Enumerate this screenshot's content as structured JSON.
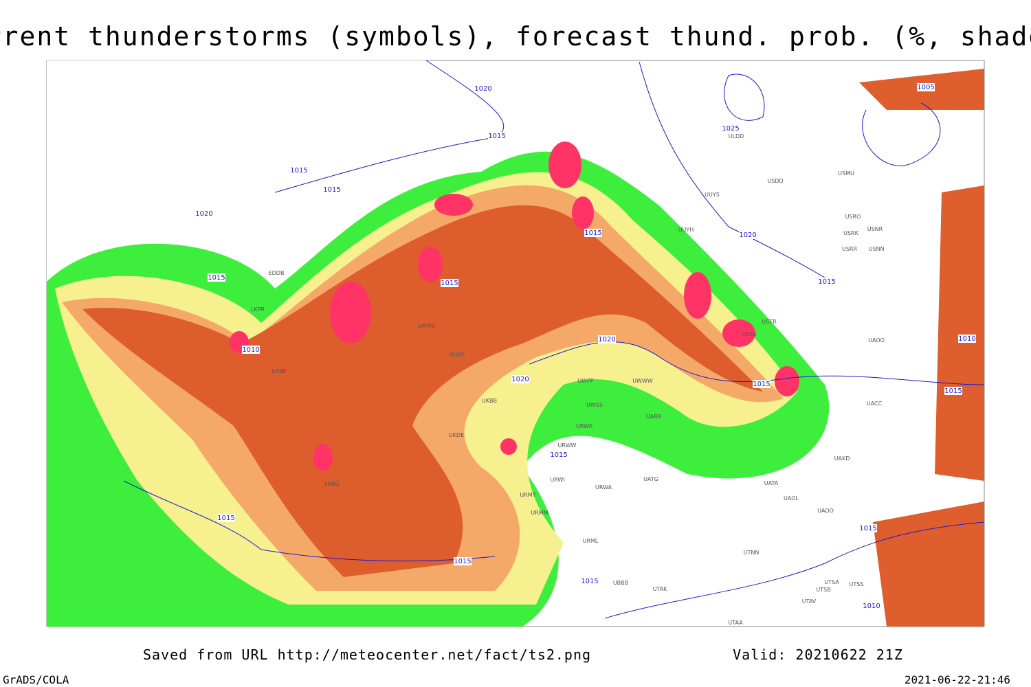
{
  "header": {
    "title": "Current thunderstorms (symbols), forecast thund. prob. (%, shaded)"
  },
  "footer": {
    "source": "Saved from URL http://meteocenter.net/fact/ts2.png",
    "valid": "Valid: 20210622 21Z",
    "software": "GrADS/COLA",
    "timestamp": "2021-06-22-21:46"
  },
  "isobar_labels": [
    "1020",
    "1015",
    "1015",
    "1015",
    "1020",
    "1015",
    "1010",
    "1015",
    "1015",
    "1025",
    "1020",
    "1015",
    "1010",
    "1015",
    "1020",
    "1020",
    "1015",
    "1015",
    "1015",
    "1015",
    "1015",
    "1015",
    "1010",
    "1005"
  ],
  "stations": [
    "ULDD",
    "USDD",
    "USMU",
    "UUYS",
    "USRO",
    "USRK",
    "USNR",
    "USRR",
    "USNN",
    "UUYH",
    "USTR",
    "USSS",
    "UACC",
    "UAOO",
    "UAKD",
    "UATA",
    "UAOL",
    "UAOO",
    "UTNN",
    "UATG",
    "URWA",
    "URWI",
    "URMT",
    "URMM",
    "URML",
    "UBBB",
    "UTAK",
    "UTSA",
    "UTSB",
    "UTSS",
    "UTAV",
    "UTAA",
    "UWPP",
    "UWWW",
    "UWSS",
    "UARR",
    "URWK",
    "URWW",
    "EDDB",
    "LKPR",
    "LHBP",
    "UKBB",
    "UKDE",
    "UUBP",
    "UMMS",
    "LBBG"
  ]
}
